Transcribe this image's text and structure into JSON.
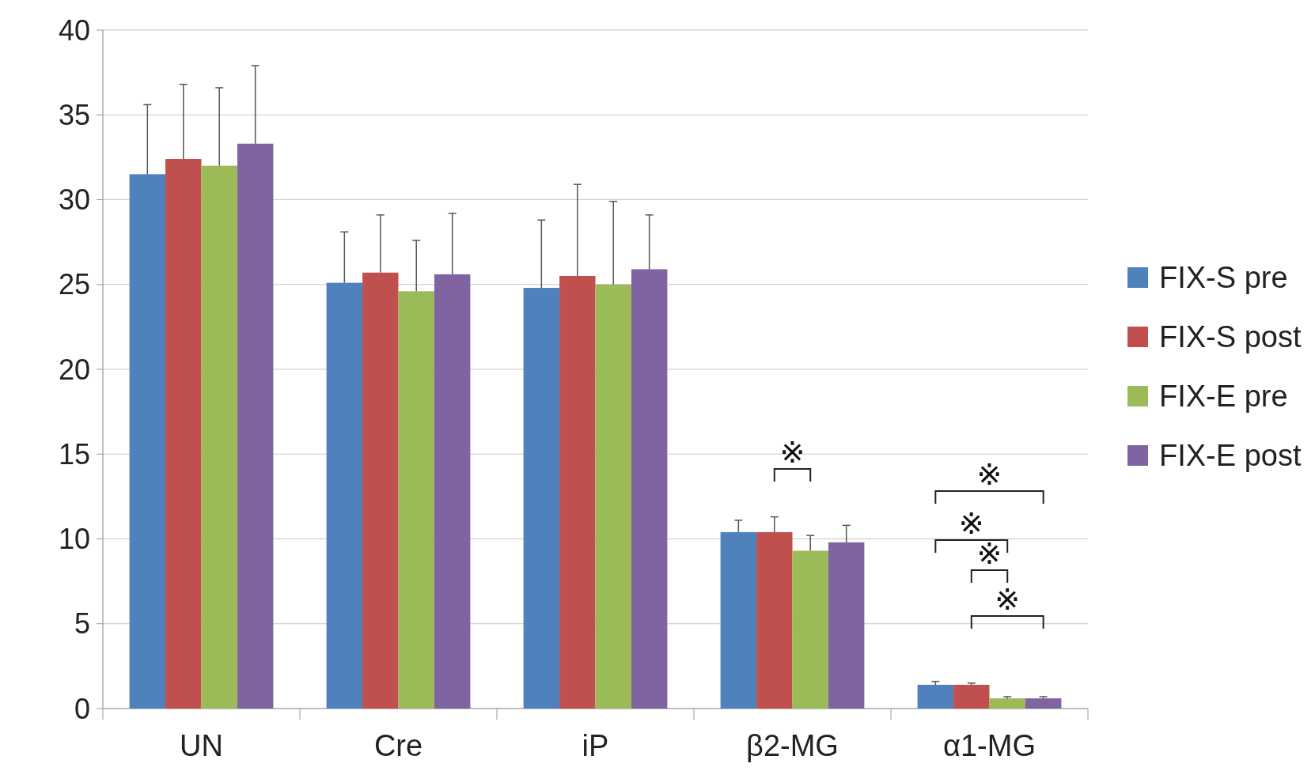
{
  "chart_data": {
    "type": "bar",
    "categories": [
      "UN",
      "Cre",
      "iP",
      "β2-MG",
      "α1-MG"
    ],
    "series": [
      {
        "name": "FIX-S pre",
        "color": "#4f81bd",
        "values": [
          31.5,
          25.1,
          24.8,
          10.4,
          1.4
        ],
        "errors": [
          4.1,
          3.0,
          4.0,
          0.7,
          0.2
        ]
      },
      {
        "name": "FIX-S post",
        "color": "#c0504d",
        "values": [
          32.4,
          25.7,
          25.5,
          10.4,
          1.4
        ],
        "errors": [
          4.4,
          3.4,
          5.4,
          0.9,
          0.1
        ]
      },
      {
        "name": "FIX-E pre",
        "color": "#9bbb59",
        "values": [
          32.0,
          24.6,
          25.0,
          9.3,
          0.6
        ],
        "errors": [
          4.6,
          3.0,
          4.9,
          0.9,
          0.1
        ]
      },
      {
        "name": "FIX-E post",
        "color": "#8064a2",
        "values": [
          33.3,
          25.6,
          25.9,
          9.8,
          0.6
        ],
        "errors": [
          4.6,
          3.6,
          3.2,
          1.0,
          0.1
        ]
      }
    ],
    "ylim": [
      0,
      40
    ],
    "yticks": [
      0,
      5,
      10,
      15,
      20,
      25,
      30,
      35,
      40
    ],
    "grid": "y",
    "legend": "right",
    "annotations": [
      "※",
      "※",
      "※",
      "※",
      "※"
    ]
  }
}
